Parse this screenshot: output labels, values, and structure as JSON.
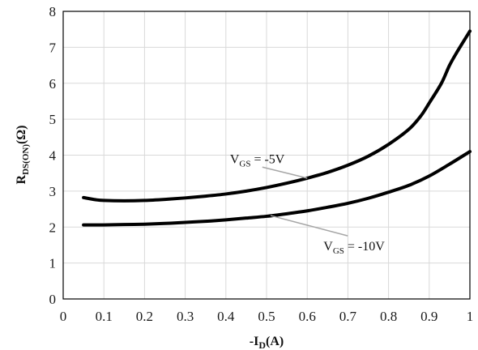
{
  "chart_data": {
    "type": "line",
    "title": "",
    "xlabel": "-I_D(A)",
    "xlabel_parts": {
      "main": "-I",
      "sub": "D",
      "tail": "(A)"
    },
    "ylabel": "R_DS(ON)(Ω)",
    "ylabel_parts": {
      "main": "R",
      "sub": "DS(ON)",
      "tail": "(Ω)"
    },
    "xlim": [
      0,
      1
    ],
    "ylim": [
      0,
      8
    ],
    "xticks": [
      "0",
      "0.1",
      "0.2",
      "0.3",
      "0.4",
      "0.5",
      "0.6",
      "0.7",
      "0.8",
      "0.9",
      "1"
    ],
    "yticks": [
      "0",
      "1",
      "2",
      "3",
      "4",
      "5",
      "6",
      "7",
      "8"
    ],
    "grid": true,
    "series": [
      {
        "x": [
          0.05,
          0.08,
          0.1,
          0.15,
          0.2,
          0.25,
          0.3,
          0.35,
          0.4,
          0.45,
          0.5,
          0.55,
          0.6,
          0.65,
          0.7,
          0.75,
          0.8,
          0.85,
          0.88,
          0.9,
          0.93,
          0.95,
          0.97,
          1.0
        ],
        "y": [
          2.82,
          2.76,
          2.74,
          2.73,
          2.74,
          2.77,
          2.81,
          2.86,
          2.92,
          3.0,
          3.1,
          3.22,
          3.36,
          3.52,
          3.72,
          3.97,
          4.3,
          4.72,
          5.1,
          5.45,
          6.0,
          6.5,
          6.9,
          7.45
        ]
      },
      {
        "x": [
          0.05,
          0.1,
          0.15,
          0.2,
          0.25,
          0.3,
          0.35,
          0.4,
          0.45,
          0.5,
          0.55,
          0.6,
          0.65,
          0.7,
          0.75,
          0.8,
          0.85,
          0.9,
          0.95,
          1.0
        ],
        "y": [
          2.06,
          2.06,
          2.07,
          2.08,
          2.1,
          2.13,
          2.16,
          2.2,
          2.25,
          2.3,
          2.37,
          2.45,
          2.55,
          2.66,
          2.8,
          2.97,
          3.16,
          3.42,
          3.75,
          4.1
        ]
      }
    ],
    "annotations": [
      {
        "main": "V",
        "sub": "GS",
        "tail": " = -5V",
        "anchor": {
          "x": 0.6,
          "y": 3.36
        },
        "label_at": {
          "x": 0.41,
          "y": 3.78
        }
      },
      {
        "main": "V",
        "sub": "GS",
        "tail": " = -10V",
        "anchor": {
          "x": 0.51,
          "y": 2.32
        },
        "label_at": {
          "x": 0.64,
          "y": 1.35
        }
      }
    ]
  }
}
